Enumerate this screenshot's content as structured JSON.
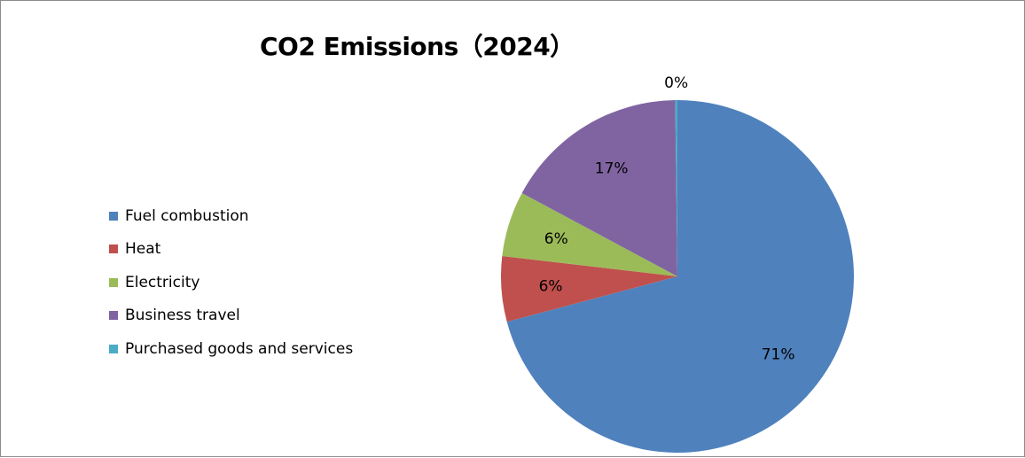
{
  "chart_data": {
    "type": "pie",
    "title": "CO2 Emissions（2024）",
    "categories": [
      "Fuel combustion",
      "Heat",
      "Electricity",
      "Business travel",
      "Purchased goods and services"
    ],
    "values": [
      71.0,
      6.0,
      6.0,
      17.0,
      0.2
    ],
    "data_labels": [
      "71%",
      "6%",
      "6%",
      "17%",
      "0%"
    ],
    "colors": [
      "#4F81BD",
      "#C0504D",
      "#9BBB59",
      "#8064A2",
      "#4BACC6"
    ],
    "legend_position": "left"
  }
}
